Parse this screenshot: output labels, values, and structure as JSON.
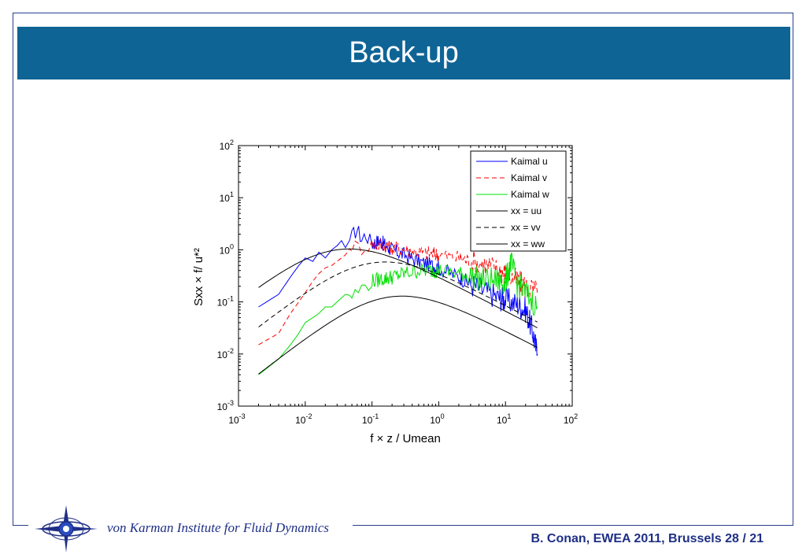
{
  "slide": {
    "title": "Back-up",
    "footer_org": "von Karman Institute for Fluid Dynamics",
    "footer_credit": "B. Conan, EWEA 2011, Brussels  28 / 21"
  },
  "chart_data": {
    "type": "line",
    "xscale": "log",
    "yscale": "log",
    "xlim": [
      0.001,
      100
    ],
    "ylim": [
      0.001,
      100
    ],
    "xlabel": "f × z / Umean",
    "ylabel": "Sxx × f/ u*²",
    "x_ticks": [
      {
        "base": "10",
        "exp": "-3"
      },
      {
        "base": "10",
        "exp": "-2"
      },
      {
        "base": "10",
        "exp": "-1"
      },
      {
        "base": "10",
        "exp": "0"
      },
      {
        "base": "10",
        "exp": "1"
      },
      {
        "base": "10",
        "exp": "2"
      }
    ],
    "y_ticks": [
      {
        "base": "10",
        "exp": "-3"
      },
      {
        "base": "10",
        "exp": "-2"
      },
      {
        "base": "10",
        "exp": "-1"
      },
      {
        "base": "10",
        "exp": "0"
      },
      {
        "base": "10",
        "exp": "1"
      },
      {
        "base": "10",
        "exp": "2"
      }
    ],
    "legend_position": "top-right",
    "grid": false,
    "series": [
      {
        "name": "Kaimal u",
        "color": "#0000ff",
        "style": "solid",
        "kind": "measured",
        "x": [
          0.002,
          0.004,
          0.006,
          0.008,
          0.01,
          0.013,
          0.016,
          0.02,
          0.025,
          0.03,
          0.035,
          0.04,
          0.05,
          0.06,
          0.07,
          0.08,
          0.1,
          0.13,
          0.16,
          0.2,
          0.3,
          0.5,
          0.8,
          1,
          2,
          3,
          5,
          8,
          10,
          15,
          20,
          25,
          30
        ],
        "y": [
          0.08,
          0.14,
          0.3,
          0.5,
          0.7,
          0.6,
          0.9,
          0.7,
          1.0,
          1.2,
          1.5,
          1.1,
          1.8,
          2.5,
          1.6,
          2.0,
          1.3,
          1.5,
          1.2,
          1.0,
          0.8,
          0.6,
          0.5,
          0.45,
          0.3,
          0.22,
          0.16,
          0.12,
          0.11,
          0.09,
          0.07,
          0.03,
          0.01
        ]
      },
      {
        "name": "Kaimal v",
        "color": "#ff0000",
        "style": "dashed",
        "kind": "measured",
        "x": [
          0.002,
          0.004,
          0.006,
          0.008,
          0.01,
          0.013,
          0.016,
          0.02,
          0.025,
          0.03,
          0.04,
          0.05,
          0.07,
          0.1,
          0.15,
          0.2,
          0.3,
          0.5,
          0.8,
          1,
          2,
          3,
          5,
          8,
          10,
          15,
          20,
          30
        ],
        "y": [
          0.015,
          0.025,
          0.06,
          0.1,
          0.15,
          0.25,
          0.35,
          0.45,
          0.5,
          0.6,
          0.8,
          1.2,
          1.1,
          1.3,
          1.2,
          1.1,
          1.0,
          0.9,
          0.85,
          0.8,
          0.7,
          0.6,
          0.5,
          0.4,
          0.35,
          0.25,
          0.2,
          0.15
        ]
      },
      {
        "name": "Kaimal w",
        "color": "#00e000",
        "style": "solid",
        "kind": "measured",
        "x": [
          0.002,
          0.004,
          0.006,
          0.008,
          0.01,
          0.013,
          0.016,
          0.02,
          0.025,
          0.03,
          0.04,
          0.05,
          0.07,
          0.1,
          0.15,
          0.2,
          0.3,
          0.5,
          0.8,
          1,
          2,
          3,
          5,
          8,
          10,
          12,
          15,
          20,
          30
        ],
        "y": [
          0.004,
          0.008,
          0.015,
          0.025,
          0.04,
          0.05,
          0.06,
          0.08,
          0.08,
          0.1,
          0.14,
          0.13,
          0.18,
          0.25,
          0.28,
          0.3,
          0.35,
          0.4,
          0.4,
          0.4,
          0.35,
          0.3,
          0.27,
          0.25,
          0.23,
          0.6,
          0.22,
          0.15,
          0.08
        ]
      },
      {
        "name": "xx = uu",
        "color": "#000000",
        "style": "solid",
        "kind": "model",
        "A": 105,
        "B": 33,
        "p": 1.6667
      },
      {
        "name": "xx = vv",
        "color": "#000000",
        "style": "dashed",
        "kind": "model",
        "A": 17,
        "B": 9.5,
        "p": 1.6667
      },
      {
        "name": "xx = ww",
        "color": "#000000",
        "style": "solid",
        "kind": "model",
        "A": 2.1,
        "B": 5.3,
        "p": 1.6667
      }
    ]
  }
}
